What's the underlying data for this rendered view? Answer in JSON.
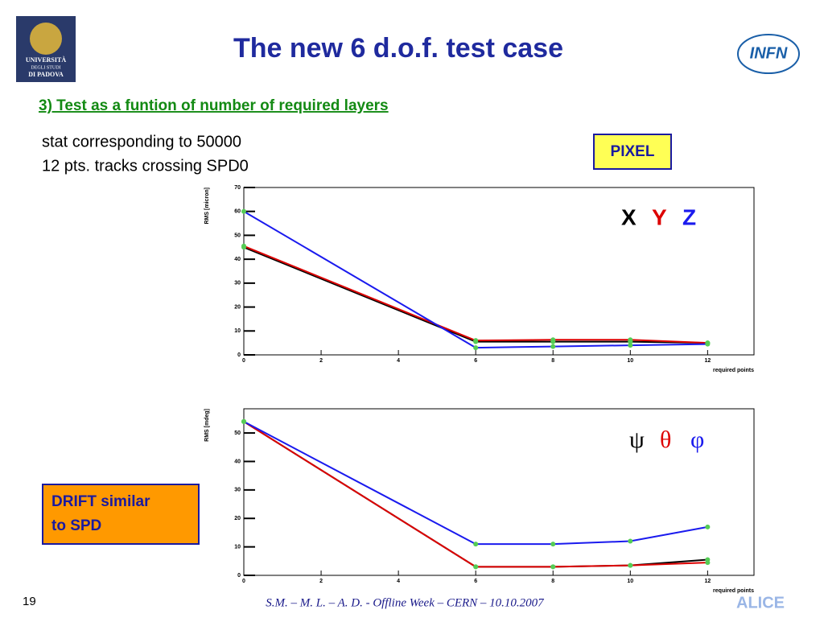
{
  "slide": {
    "title": "The new 6 d.o.f. test case",
    "subtitle": "3) Test as a funtion of number of required layers",
    "stat_lines": [
      "stat corresponding to 50000",
      "12 pts. tracks crossing SPD0"
    ],
    "pixel_box": "PIXEL",
    "drift_box": [
      "DRIFT similar",
      "to SPD"
    ],
    "page_number": "19",
    "footer": "S.M. – M. L. – A. D.   - Offline Week – CERN – 10.10.2007",
    "logo_left": [
      "UNIVERSITÀ",
      "DEGLI STUDI",
      "DI PADOVA"
    ],
    "logo_right": "INFN",
    "logo_footer": "ALICE"
  },
  "chart_data": [
    {
      "type": "line",
      "y_label": "RMS [micron]",
      "x_label": "required points",
      "x": [
        0,
        6,
        8,
        10,
        12
      ],
      "xlim": [
        0,
        13.2
      ],
      "xticks": [
        0,
        2,
        4,
        6,
        8,
        10,
        12
      ],
      "ylim": [
        0,
        70
      ],
      "yticks": [
        0,
        10,
        20,
        30,
        40,
        50,
        60,
        70
      ],
      "marker_color": "#55cc55",
      "series": [
        {
          "name": "X",
          "color": "#000000",
          "values": [
            45,
            5.5,
            5.5,
            5.5,
            5
          ]
        },
        {
          "name": "Y",
          "color": "#dd0000",
          "values": [
            45.5,
            6,
            6.3,
            6.3,
            5
          ]
        },
        {
          "name": "Z",
          "color": "#1a1aee",
          "values": [
            60,
            3,
            3.5,
            4,
            4.5
          ]
        }
      ]
    },
    {
      "type": "line",
      "y_label": "RMS [mdeg]",
      "x_label": "required points",
      "x": [
        0,
        6,
        8,
        10,
        12
      ],
      "xlim": [
        0,
        13.2
      ],
      "xticks": [
        0,
        2,
        4,
        6,
        8,
        10,
        12
      ],
      "ylim": [
        0,
        58.5
      ],
      "yticks": [
        0,
        10,
        20,
        30,
        40,
        50
      ],
      "marker_color": "#55cc55",
      "series": [
        {
          "name": "ψ",
          "color": "#000000",
          "values": [
            54,
            3,
            3,
            3.5,
            5.5
          ]
        },
        {
          "name": "θ",
          "color": "#dd0000",
          "values": [
            54,
            3,
            3,
            3.5,
            4.5
          ]
        },
        {
          "name": "φ",
          "color": "#1a1aee",
          "values": [
            54,
            11,
            11,
            12,
            17
          ]
        }
      ]
    }
  ]
}
